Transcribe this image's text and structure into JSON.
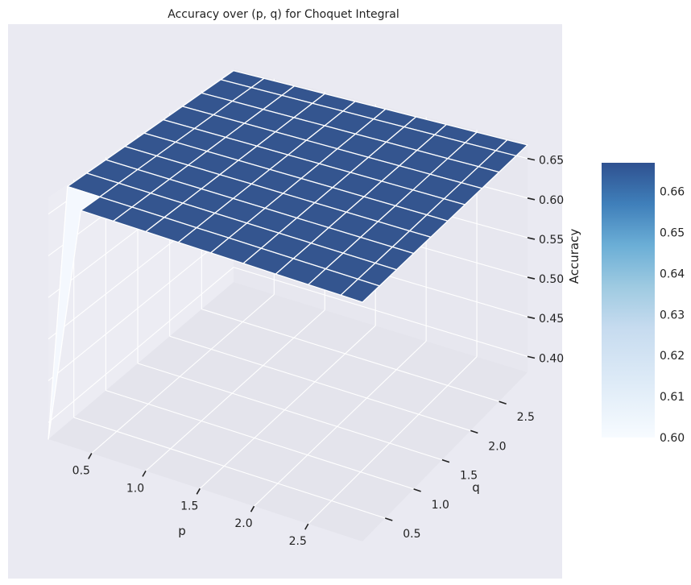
{
  "chart_data": {
    "type": "surface3d",
    "title": "Accuracy over (p, q) for Choquet Integral",
    "xlabel": "p",
    "ylabel": "q",
    "zlabel": "Accuracy",
    "x_ticks": [
      "0.5",
      "1.0",
      "1.5",
      "2.0",
      "2.5"
    ],
    "y_ticks": [
      "0.5",
      "1.0",
      "1.5",
      "2.0",
      "2.5"
    ],
    "z_ticks": [
      "0.40",
      "0.45",
      "0.50",
      "0.55",
      "0.60",
      "0.65"
    ],
    "xlim": [
      0.1,
      3.0
    ],
    "ylim": [
      0.1,
      3.0
    ],
    "zlim": [
      0.38,
      0.67
    ],
    "p": [
      0.1,
      0.4,
      0.7,
      1.0,
      1.3,
      1.6,
      1.9,
      2.2,
      2.5,
      2.8,
      3.0
    ],
    "q": [
      0.1,
      0.4,
      0.7,
      1.0,
      1.3,
      1.6,
      1.9,
      2.2,
      2.5,
      2.8,
      3.0
    ],
    "accuracy_plateau": 0.667,
    "accuracy_min_at_corner": {
      "p": 0.1,
      "q": 0.1,
      "accuracy": 0.38
    },
    "colorbar": {
      "ticks": [
        "0.60",
        "0.61",
        "0.62",
        "0.63",
        "0.64",
        "0.65",
        "0.66"
      ],
      "range": [
        0.6,
        0.667
      ],
      "colormap": "Blues",
      "low_color": "#f7fbff",
      "high_color": "#2f5190"
    },
    "colors": {
      "pane": "#eaeaf2",
      "figure_bg": "#eaeaf2",
      "grid": "#ffffff",
      "surface_high": "#34558f",
      "surface_low": "#f4f8fe"
    }
  }
}
